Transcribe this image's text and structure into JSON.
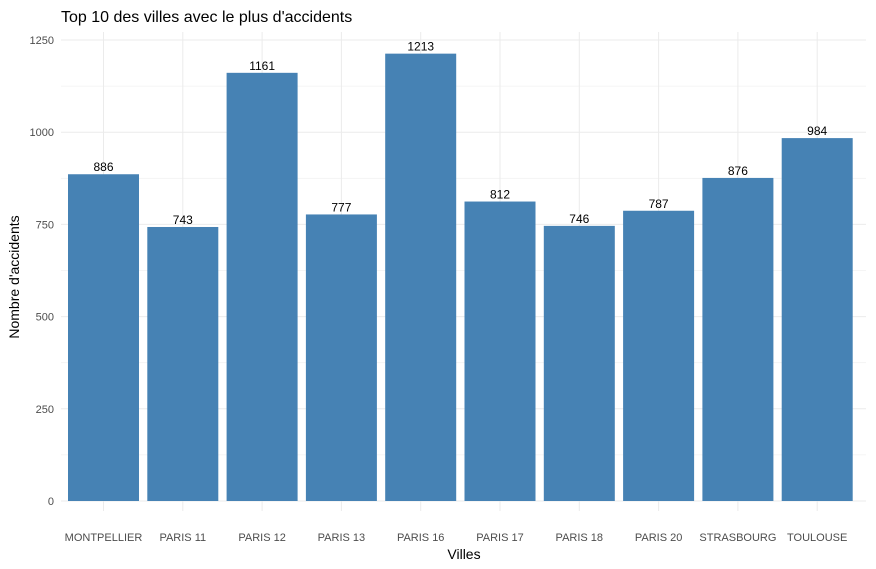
{
  "chart_data": {
    "type": "bar",
    "title": "Top 10 des villes avec le plus d'accidents",
    "xlabel": "Villes",
    "ylabel": "Nombre d'accidents",
    "categories": [
      "MONTPELLIER",
      "PARIS 11",
      "PARIS 12",
      "PARIS 13",
      "PARIS 16",
      "PARIS 17",
      "PARIS 18",
      "PARIS 20",
      "STRASBOURG",
      "TOULOUSE"
    ],
    "values": [
      886,
      743,
      1161,
      777,
      1213,
      812,
      746,
      787,
      876,
      984
    ],
    "value_labels": [
      "886",
      "743",
      "1161",
      "777",
      "1213",
      "812",
      "746",
      "787",
      "876",
      "984"
    ],
    "ylim": [
      0,
      1250
    ],
    "yticks": [
      0,
      250,
      500,
      750,
      1000,
      1250
    ],
    "ytick_labels": [
      "0",
      "250",
      "500",
      "750",
      "1000",
      "1250"
    ],
    "bar_color": "#4682B4",
    "grid": true,
    "legend": "none"
  }
}
